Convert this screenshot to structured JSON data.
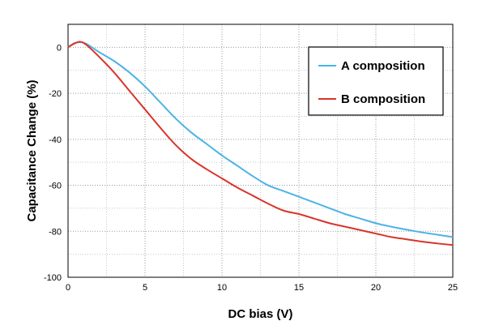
{
  "chart_data": {
    "type": "line",
    "xlabel": "DC bias (V)",
    "ylabel": "Capacitance Change (%)",
    "xlim": [
      0,
      25
    ],
    "ylim": [
      -100,
      10
    ],
    "xticks": [
      0,
      5,
      10,
      15,
      20,
      25
    ],
    "yticks": [
      0,
      -20,
      -40,
      -60,
      -80,
      -100
    ],
    "grid": true,
    "legend_position": "top-right",
    "series": [
      {
        "name": "A composition",
        "color": "#4db3e6",
        "x": [
          0,
          0.4,
          0.8,
          1.2,
          2,
          3,
          4,
          5,
          6,
          7,
          8,
          9,
          10,
          11,
          12,
          13,
          14,
          15,
          16,
          17,
          18,
          19,
          20,
          21,
          22,
          23,
          24,
          25
        ],
        "y": [
          0,
          1.8,
          2.2,
          1.5,
          -2,
          -6,
          -11,
          -17,
          -24,
          -31,
          -37,
          -42,
          -47,
          -51.5,
          -56,
          -60,
          -62.5,
          -65,
          -67.5,
          -70,
          -72.5,
          -74.5,
          -76.5,
          -78,
          -79.3,
          -80.5,
          -81.5,
          -82.5
        ]
      },
      {
        "name": "B composition",
        "color": "#d9342b",
        "x": [
          0,
          0.4,
          0.8,
          1.2,
          2,
          3,
          4,
          5,
          6,
          7,
          8,
          9,
          10,
          11,
          12,
          13,
          14,
          15,
          16,
          17,
          18,
          19,
          20,
          21,
          22,
          23,
          24,
          25
        ],
        "y": [
          0,
          1.6,
          2.4,
          1,
          -4,
          -11,
          -19,
          -27,
          -35,
          -42.5,
          -48.5,
          -53,
          -57,
          -61,
          -64.5,
          -68,
          -71,
          -72.5,
          -74.5,
          -76.5,
          -78,
          -79.5,
          -81,
          -82.5,
          -83.5,
          -84.5,
          -85.3,
          -86
        ]
      }
    ]
  }
}
